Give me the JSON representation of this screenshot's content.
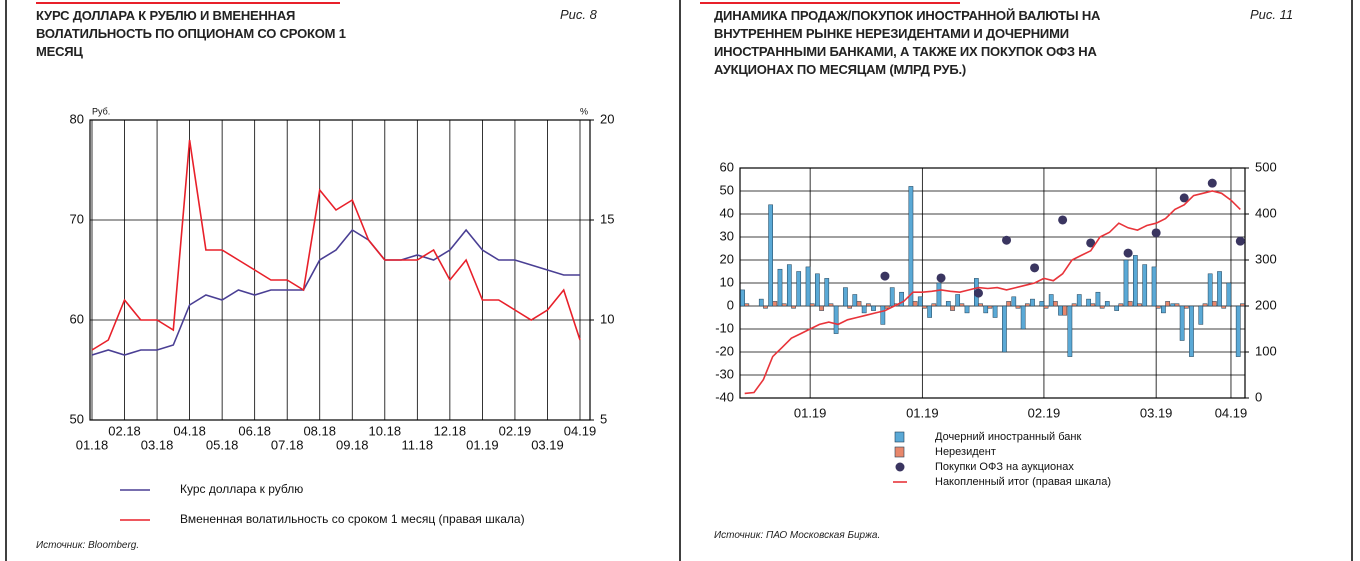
{
  "chart_data": [
    {
      "type": "line",
      "title": "КУРС ДОЛЛАРА К РУБЛЮ И ВМЕНЕННАЯ ВОЛАТИЛЬНОСТЬ ПО ОПЦИОНАМ СО СРОКОМ 1 МЕСЯЦ",
      "figure_label": "Рис. 8",
      "ylabel": "Руб.",
      "y2label": "%",
      "categories": [
        "01.18",
        null,
        "02.18",
        null,
        "03.18",
        null,
        "04.18",
        null,
        "05.18",
        null,
        "06.18",
        null,
        "07.18",
        null,
        "08.18",
        null,
        "09.18",
        null,
        "10.18",
        null,
        "11.18",
        null,
        "12.18",
        null,
        "01.19",
        null,
        "02.19",
        null,
        "03.19",
        null,
        "04.19"
      ],
      "series": [
        {
          "name": "Курс доллара к рублю",
          "color": "#4a3f94",
          "values": [
            56.5,
            57,
            56.5,
            57,
            57,
            57.5,
            61.5,
            62.5,
            62,
            63,
            62.5,
            63,
            63,
            63,
            66,
            67,
            69,
            68,
            66,
            66,
            66.5,
            66,
            67,
            69,
            67,
            66,
            66,
            65.5,
            65,
            64.5,
            64.5
          ]
        },
        {
          "name": "Вмененная волатильность со сроком 1 месяц (правая шкала)",
          "color": "#e8202a",
          "axis": "y2",
          "values": [
            8.5,
            9,
            11,
            10,
            10,
            9.5,
            19,
            13.5,
            13.5,
            13,
            12.5,
            12,
            12,
            11.5,
            16.5,
            15.5,
            16,
            14,
            13,
            13,
            13,
            13.5,
            12,
            13,
            11,
            11,
            10.5,
            10,
            10.5,
            11.5,
            9
          ]
        }
      ],
      "ylim": [
        50,
        80
      ],
      "yticks": [
        50,
        60,
        70,
        80
      ],
      "y2lim": [
        5,
        20
      ],
      "y2ticks": [
        5,
        10,
        15,
        20
      ],
      "grid": true,
      "source": "Источник: Bloomberg."
    },
    {
      "type": "bar",
      "title": "ДИНАМИКА ПРОДАЖ/ПОКУПОК ИНОСТРАННОЙ ВАЛЮТЫ НА ВНУТРЕННЕМ РЫНКЕ НЕРЕЗИДЕНТАМИ И ДОЧЕРНИМИ ИНОСТРАННЫМИ БАНКАМИ, А ТАКЖЕ ИХ ПОКУПОК ОФЗ НА АУКЦИОНАХ ПО МЕСЯЦАМ (МЛРД РУБ.)",
      "figure_label": "Рис. 11",
      "categories": [
        null,
        null,
        null,
        null,
        null,
        null,
        null,
        "01.19",
        null,
        null,
        null,
        null,
        null,
        null,
        null,
        null,
        null,
        null,
        null,
        "01.19",
        null,
        null,
        null,
        null,
        null,
        null,
        null,
        null,
        null,
        null,
        null,
        null,
        "02.19",
        null,
        null,
        null,
        null,
        null,
        null,
        null,
        null,
        null,
        null,
        null,
        "03.19",
        null,
        null,
        null,
        null,
        null,
        null,
        null,
        "04.19",
        null
      ],
      "series": [
        {
          "name": "Дочерний иностранный банк",
          "color": "#5aa9d6",
          "type": "bar",
          "values": [
            7,
            0,
            3,
            44,
            16,
            18,
            15,
            17,
            14,
            12,
            -12,
            8,
            5,
            -3,
            -2,
            -8,
            8,
            6,
            52,
            4,
            -5,
            10,
            2,
            5,
            -3,
            12,
            -3,
            -5,
            -20,
            4,
            -10,
            3,
            2,
            5,
            -4,
            -22,
            5,
            3,
            6,
            2,
            -2,
            20,
            22,
            18,
            17,
            -3,
            1,
            -15,
            -22,
            -8,
            14,
            15,
            10,
            -22
          ]
        },
        {
          "name": "Нерезидент",
          "color": "#e8876b",
          "type": "bar",
          "values": [
            1,
            0,
            -1,
            2,
            1,
            -1,
            0,
            1,
            -2,
            1,
            0,
            -1,
            2,
            1,
            0,
            -1,
            1,
            0,
            2,
            -1,
            1,
            0,
            -2,
            1,
            0,
            1,
            -1,
            0,
            2,
            -1,
            1,
            0,
            -1,
            2,
            -4,
            1,
            0,
            1,
            -1,
            0,
            1,
            2,
            1,
            0,
            -1,
            2,
            1,
            -1,
            0,
            1,
            2,
            -1,
            0,
            1
          ]
        },
        {
          "name": "Покупки ОФЗ на аукционах",
          "color": "#3a3560",
          "type": "scatter",
          "axis": "y2",
          "values": [
            null,
            null,
            null,
            null,
            null,
            null,
            null,
            null,
            null,
            null,
            null,
            null,
            null,
            null,
            null,
            265,
            null,
            null,
            null,
            null,
            null,
            261,
            null,
            null,
            null,
            228,
            null,
            null,
            343,
            null,
            null,
            283,
            null,
            null,
            387,
            null,
            null,
            337,
            null,
            null,
            null,
            315,
            null,
            null,
            359,
            null,
            null,
            435,
            null,
            null,
            467,
            null,
            null,
            341
          ]
        },
        {
          "name": "Накопленный итог (правая шкала)",
          "color": "#e8343a",
          "type": "line",
          "axis": "y2",
          "values": [
            10,
            12,
            40,
            90,
            110,
            130,
            140,
            150,
            160,
            165,
            160,
            170,
            175,
            180,
            185,
            190,
            200,
            210,
            230,
            230,
            232,
            235,
            232,
            230,
            235,
            240,
            238,
            240,
            235,
            240,
            245,
            250,
            260,
            255,
            270,
            300,
            310,
            320,
            350,
            360,
            380,
            370,
            365,
            375,
            380,
            390,
            410,
            420,
            440,
            445,
            450,
            445,
            430,
            410
          ]
        }
      ],
      "ylim": [
        -40,
        60
      ],
      "yticks": [
        -40,
        -30,
        -20,
        -10,
        0,
        10,
        20,
        30,
        40,
        50,
        60
      ],
      "y2lim": [
        0,
        500
      ],
      "y2ticks": [
        0,
        100,
        200,
        300,
        400,
        500
      ],
      "grid": true,
      "source": "Источник: ПАО Московская Биржа."
    }
  ]
}
